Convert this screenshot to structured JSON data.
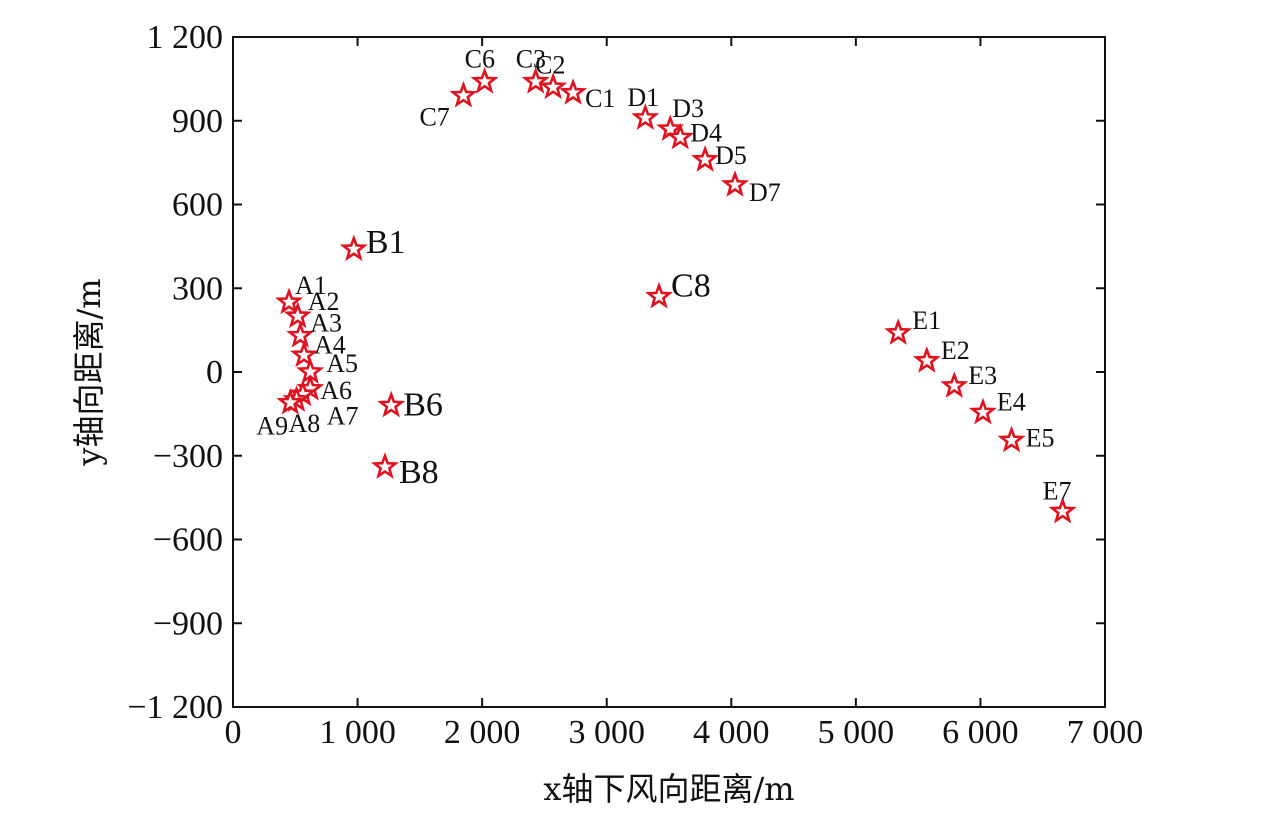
{
  "chart_data": {
    "type": "scatter",
    "title": "",
    "xlabel": "x轴下风向距离/m",
    "ylabel": "y轴向距离/m",
    "xlim": [
      0,
      7000
    ],
    "ylim": [
      -1200,
      1200
    ],
    "xticks": [
      0,
      1000,
      2000,
      3000,
      4000,
      5000,
      6000,
      7000
    ],
    "yticks": [
      -1200,
      -900,
      -600,
      -300,
      0,
      300,
      600,
      900,
      1200
    ],
    "xtick_labels": [
      "0",
      "1 000",
      "2 000",
      "3 000",
      "4 000",
      "5 000",
      "6 000",
      "7 000"
    ],
    "ytick_labels": [
      "−1 200",
      "−900",
      "−600",
      "−300",
      "0",
      "300",
      "600",
      "900",
      "1 200"
    ],
    "grid": false,
    "marker": "star",
    "marker_color": "#e0121f",
    "points": [
      {
        "label": "A1",
        "x": 450,
        "y": 250
      },
      {
        "label": "A2",
        "x": 520,
        "y": 200
      },
      {
        "label": "A3",
        "x": 540,
        "y": 130
      },
      {
        "label": "A4",
        "x": 570,
        "y": 60
      },
      {
        "label": "A5",
        "x": 620,
        "y": 0
      },
      {
        "label": "A6",
        "x": 620,
        "y": -60
      },
      {
        "label": "A7",
        "x": 560,
        "y": -80
      },
      {
        "label": "A8",
        "x": 510,
        "y": -100
      },
      {
        "label": "A9",
        "x": 460,
        "y": -110
      },
      {
        "label": "B1",
        "x": 970,
        "y": 440
      },
      {
        "label": "B6",
        "x": 1270,
        "y": -120
      },
      {
        "label": "B8",
        "x": 1220,
        "y": -340
      },
      {
        "label": "C1",
        "x": 2730,
        "y": 1000
      },
      {
        "label": "C2",
        "x": 2570,
        "y": 1020
      },
      {
        "label": "C3",
        "x": 2430,
        "y": 1040
      },
      {
        "label": "C6",
        "x": 2020,
        "y": 1040
      },
      {
        "label": "C7",
        "x": 1850,
        "y": 990
      },
      {
        "label": "C8",
        "x": 3420,
        "y": 270
      },
      {
        "label": "D1",
        "x": 3310,
        "y": 910
      },
      {
        "label": "D3",
        "x": 3510,
        "y": 870
      },
      {
        "label": "D4",
        "x": 3590,
        "y": 840
      },
      {
        "label": "D5",
        "x": 3790,
        "y": 760
      },
      {
        "label": "D7",
        "x": 4030,
        "y": 670
      },
      {
        "label": "E1",
        "x": 5340,
        "y": 140
      },
      {
        "label": "E2",
        "x": 5570,
        "y": 40
      },
      {
        "label": "E3",
        "x": 5790,
        "y": -50
      },
      {
        "label": "E4",
        "x": 6020,
        "y": -145
      },
      {
        "label": "E5",
        "x": 6250,
        "y": -245
      },
      {
        "label": "E7",
        "x": 6660,
        "y": -500
      }
    ]
  }
}
